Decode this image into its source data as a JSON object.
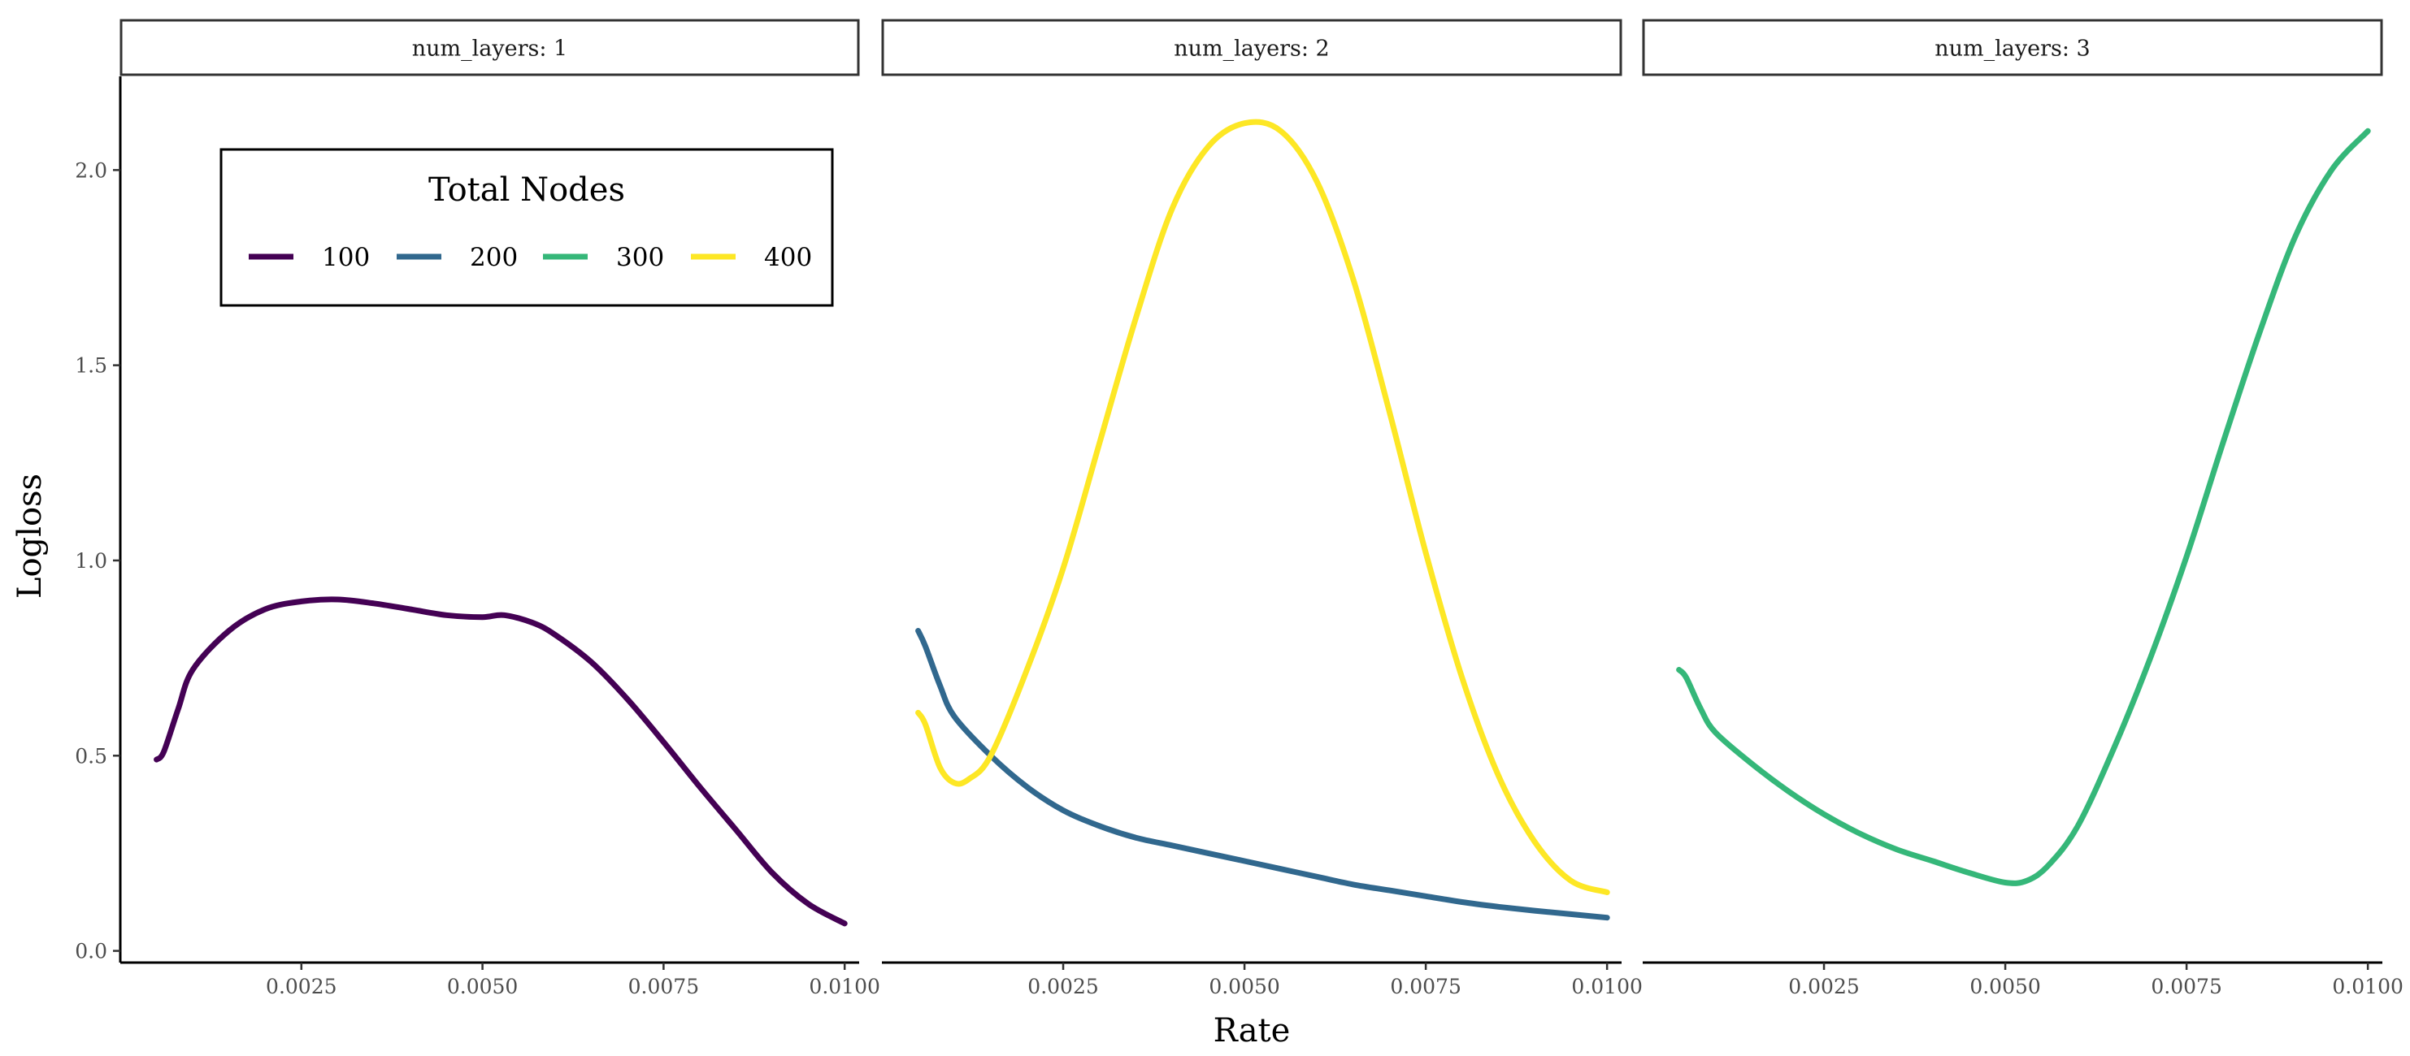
{
  "chart_data": {
    "type": "line",
    "xlabel": "Rate",
    "ylabel": "Logloss",
    "xlim": [
      0.0,
      0.0102
    ],
    "ylim": [
      -0.03,
      2.24
    ],
    "x_ticks": [
      {
        "value": 0.0025,
        "label": "0.0025"
      },
      {
        "value": 0.005,
        "label": "0.0050"
      },
      {
        "value": 0.0075,
        "label": "0.0075"
      },
      {
        "value": 0.01,
        "label": "0.0100"
      }
    ],
    "y_ticks": [
      {
        "value": 0.0,
        "label": "0.0"
      },
      {
        "value": 0.5,
        "label": "0.5"
      },
      {
        "value": 1.0,
        "label": "1.0"
      },
      {
        "value": 1.5,
        "label": "1.5"
      },
      {
        "value": 2.0,
        "label": "2.0"
      }
    ],
    "grid": false,
    "legend": {
      "title": "Total Nodes",
      "placement": "inside-top-left-of-first-panel",
      "entries": [
        {
          "label": "100",
          "color": "#440154"
        },
        {
          "label": "200",
          "color": "#31688e"
        },
        {
          "label": "300",
          "color": "#35b779"
        },
        {
          "label": "400",
          "color": "#fde725"
        }
      ]
    },
    "panels": [
      {
        "strip": "num_layers: 1",
        "series": [
          {
            "name": "100",
            "color": "#440154",
            "x": [
              0.0005,
              0.0006,
              0.0008,
              0.001,
              0.0015,
              0.002,
              0.0025,
              0.003,
              0.0035,
              0.004,
              0.0045,
              0.005,
              0.0053,
              0.0057,
              0.006,
              0.0065,
              0.007,
              0.0075,
              0.008,
              0.0085,
              0.009,
              0.0095,
              0.01
            ],
            "y": [
              0.49,
              0.51,
              0.62,
              0.72,
              0.82,
              0.875,
              0.895,
              0.9,
              0.89,
              0.875,
              0.86,
              0.855,
              0.86,
              0.84,
              0.81,
              0.74,
              0.645,
              0.535,
              0.42,
              0.31,
              0.2,
              0.12,
              0.07
            ]
          }
        ]
      },
      {
        "strip": "num_layers: 2",
        "series": [
          {
            "name": "200",
            "color": "#31688e",
            "x": [
              0.0005,
              0.0006,
              0.0008,
              0.001,
              0.0015,
              0.002,
              0.0025,
              0.003,
              0.0035,
              0.004,
              0.0045,
              0.005,
              0.0055,
              0.006,
              0.0065,
              0.007,
              0.0075,
              0.008,
              0.0085,
              0.009,
              0.0095,
              0.01
            ],
            "y": [
              0.82,
              0.78,
              0.68,
              0.6,
              0.5,
              0.42,
              0.36,
              0.32,
              0.29,
              0.27,
              0.25,
              0.23,
              0.21,
              0.19,
              0.17,
              0.155,
              0.14,
              0.125,
              0.113,
              0.103,
              0.094,
              0.085
            ]
          },
          {
            "name": "400",
            "color": "#fde725",
            "x": [
              0.0005,
              0.0006,
              0.0008,
              0.001,
              0.0012,
              0.0015,
              0.002,
              0.0025,
              0.003,
              0.0035,
              0.004,
              0.0045,
              0.005,
              0.0055,
              0.006,
              0.0065,
              0.007,
              0.0075,
              0.008,
              0.0085,
              0.009,
              0.0095,
              0.01
            ],
            "y": [
              0.61,
              0.58,
              0.47,
              0.43,
              0.44,
              0.5,
              0.72,
              0.98,
              1.3,
              1.62,
              1.9,
              2.06,
              2.12,
              2.1,
              1.97,
              1.72,
              1.38,
              1.02,
              0.7,
              0.45,
              0.28,
              0.18,
              0.15
            ]
          }
        ]
      },
      {
        "strip": "num_layers: 3",
        "series": [
          {
            "name": "300",
            "color": "#35b779",
            "x": [
              0.0005,
              0.0006,
              0.0008,
              0.001,
              0.0015,
              0.002,
              0.0025,
              0.003,
              0.0035,
              0.004,
              0.0045,
              0.005,
              0.0053,
              0.0056,
              0.006,
              0.0065,
              0.007,
              0.0075,
              0.008,
              0.0085,
              0.009,
              0.0095,
              0.01
            ],
            "y": [
              0.72,
              0.7,
              0.62,
              0.56,
              0.48,
              0.41,
              0.35,
              0.3,
              0.26,
              0.23,
              0.2,
              0.175,
              0.18,
              0.22,
              0.32,
              0.52,
              0.75,
              1.01,
              1.3,
              1.58,
              1.83,
              2.0,
              2.1
            ]
          }
        ]
      }
    ]
  }
}
